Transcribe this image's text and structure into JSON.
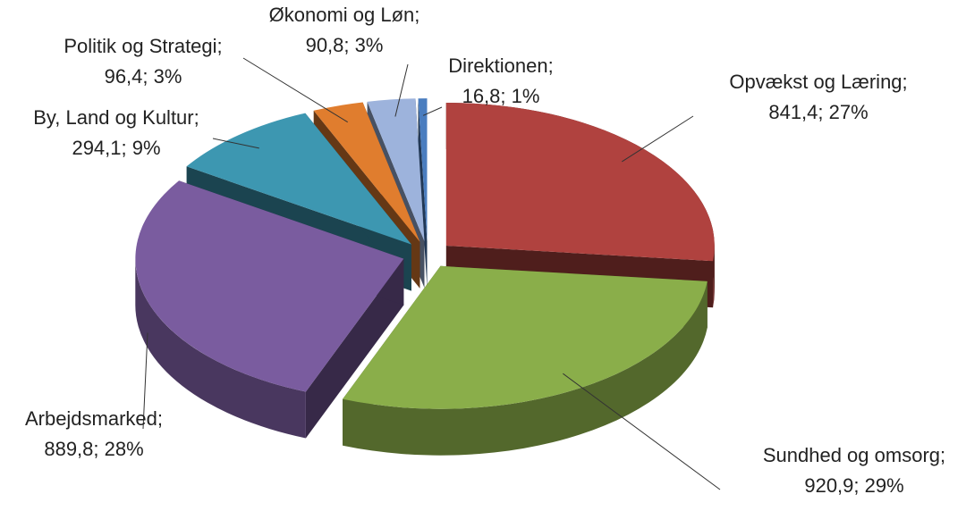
{
  "chart_data": {
    "type": "pie3d",
    "categories": [
      "Opvækst og Læring;",
      "Sundhed og omsorg;",
      "Arbejdsmarked;",
      "By, Land og Kultur;",
      "Politik og Strategi;",
      "Økonomi og Løn;",
      "Direktionen;"
    ],
    "values": [
      841.4,
      920.9,
      889.8,
      294.1,
      96.4,
      90.8,
      16.8
    ],
    "value_labels": [
      "841,4; 27%",
      "920,9; 29%",
      "889,8; 28%",
      "294,1; 9%",
      "96,4; 3%",
      "90,8; 3%",
      "16,8; 1%"
    ],
    "colors": [
      "#b0423f",
      "#8aae4a",
      "#7a5c9f",
      "#3d97b1",
      "#e07d2e",
      "#9db3dc",
      "#4a7dbf"
    ]
  }
}
